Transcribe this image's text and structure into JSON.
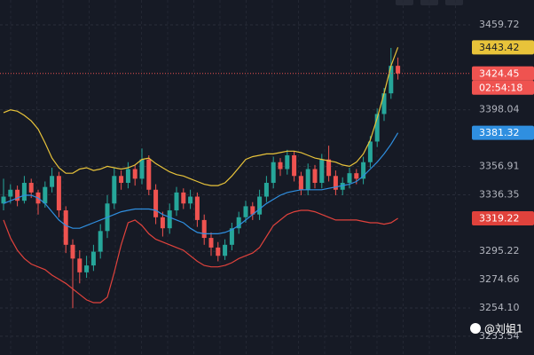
{
  "chart_data": {
    "type": "candlestick",
    "ylim": [
      3219.96,
      3477.8
    ],
    "yticks": [
      3459.72,
      {
        "value": 3398.04,
        "label": "3398.04"
      },
      3356.91,
      3336.35,
      3295.22,
      3274.66,
      {
        "value": 3254.1,
        "label": "3254.10"
      },
      3233.54
    ],
    "grid": true,
    "up_color": "#26a69a",
    "down_color": "#ef5350",
    "open": [
      3330,
      3335,
      3340,
      3332,
      3345,
      3338,
      3330,
      3342,
      3350,
      3325,
      3300,
      3290,
      3280,
      3285,
      3295,
      3310,
      3330,
      3350,
      3345,
      3355,
      3348,
      3362,
      3340,
      3320,
      3312,
      3325,
      3338,
      3330,
      3335,
      3318,
      3305,
      3298,
      3292,
      3300,
      3312,
      3320,
      3328,
      3322,
      3335,
      3345,
      3360,
      3355,
      3365,
      3350,
      3340,
      3355,
      3345,
      3362,
      3350,
      3340,
      3345,
      3352,
      3348,
      3360,
      3375,
      3395,
      3410,
      3430
    ],
    "high": [
      3348,
      3344,
      3343,
      3350,
      3348,
      3340,
      3346,
      3356,
      3353,
      3328,
      3304,
      3296,
      3292,
      3300,
      3315,
      3336,
      3356,
      3354,
      3360,
      3358,
      3370,
      3365,
      3344,
      3324,
      3330,
      3342,
      3341,
      3340,
      3338,
      3322,
      3309,
      3302,
      3304,
      3316,
      3324,
      3332,
      3331,
      3340,
      3350,
      3364,
      3363,
      3369,
      3368,
      3353,
      3359,
      3358,
      3366,
      3372,
      3354,
      3349,
      3356,
      3355,
      3364,
      3379,
      3399,
      3414,
      3443,
      3436
    ],
    "low": [
      3325,
      3330,
      3328,
      3330,
      3334,
      3322,
      3327,
      3338,
      3320,
      3294,
      3254,
      3272,
      3276,
      3281,
      3290,
      3305,
      3326,
      3340,
      3341,
      3343,
      3344,
      3336,
      3315,
      3306,
      3308,
      3321,
      3326,
      3326,
      3313,
      3300,
      3292,
      3288,
      3289,
      3296,
      3308,
      3316,
      3318,
      3318,
      3331,
      3341,
      3350,
      3351,
      3346,
      3336,
      3336,
      3341,
      3341,
      3346,
      3336,
      3336,
      3341,
      3344,
      3344,
      3356,
      3371,
      3390,
      3406,
      3420
    ],
    "close": [
      3335,
      3340,
      3332,
      3345,
      3338,
      3330,
      3342,
      3350,
      3325,
      3300,
      3290,
      3280,
      3285,
      3295,
      3310,
      3330,
      3350,
      3345,
      3355,
      3348,
      3362,
      3340,
      3320,
      3312,
      3325,
      3338,
      3330,
      3335,
      3318,
      3305,
      3298,
      3292,
      3300,
      3312,
      3320,
      3328,
      3322,
      3335,
      3345,
      3360,
      3355,
      3365,
      3350,
      3340,
      3355,
      3345,
      3362,
      3350,
      3340,
      3345,
      3352,
      3348,
      3360,
      3375,
      3395,
      3410,
      3430,
      3424.45
    ],
    "bands": [
      {
        "color": "#e8c33a",
        "values": [
          3396,
          3398,
          3397,
          3394,
          3390,
          3384,
          3374,
          3363,
          3356,
          3352,
          3352,
          3355,
          3356,
          3354,
          3355,
          3357,
          3356,
          3355,
          3356,
          3358,
          3362,
          3363,
          3359,
          3356,
          3353,
          3351,
          3350,
          3348,
          3346,
          3344,
          3343,
          3343,
          3345,
          3350,
          3356,
          3362,
          3364,
          3365,
          3366,
          3366,
          3367,
          3368,
          3368,
          3367,
          3365,
          3363,
          3362,
          3361,
          3360,
          3358,
          3357,
          3360,
          3366,
          3376,
          3392,
          3410,
          3430,
          3443.42
        ]
      },
      {
        "color": "#2f8fe0",
        "values": [
          3330,
          3332,
          3334,
          3336,
          3336,
          3334,
          3330,
          3324,
          3318,
          3314,
          3312,
          3312,
          3314,
          3316,
          3318,
          3320,
          3322,
          3324,
          3325,
          3326,
          3326,
          3326,
          3325,
          3322,
          3320,
          3318,
          3316,
          3312,
          3309,
          3308,
          3308,
          3308,
          3309,
          3311,
          3314,
          3318,
          3322,
          3326,
          3330,
          3333,
          3336,
          3338,
          3339,
          3340,
          3340,
          3340,
          3340,
          3341,
          3342,
          3343,
          3344,
          3346,
          3350,
          3355,
          3360,
          3366,
          3373,
          3381.32
        ]
      },
      {
        "color": "#e0423c",
        "values": [
          3318,
          3305,
          3296,
          3290,
          3286,
          3284,
          3282,
          3278,
          3275,
          3272,
          3268,
          3264,
          3260,
          3258,
          3258,
          3262,
          3280,
          3300,
          3316,
          3318,
          3314,
          3308,
          3304,
          3302,
          3300,
          3298,
          3296,
          3292,
          3288,
          3285,
          3284,
          3284,
          3285,
          3287,
          3290,
          3292,
          3294,
          3298,
          3306,
          3314,
          3318,
          3322,
          3324,
          3325,
          3325,
          3324,
          3322,
          3320,
          3318,
          3318,
          3318,
          3318,
          3317,
          3316,
          3316,
          3315,
          3316,
          3319.22
        ]
      }
    ],
    "countdown": "02:54:18",
    "watermark": "@刘姐1"
  }
}
